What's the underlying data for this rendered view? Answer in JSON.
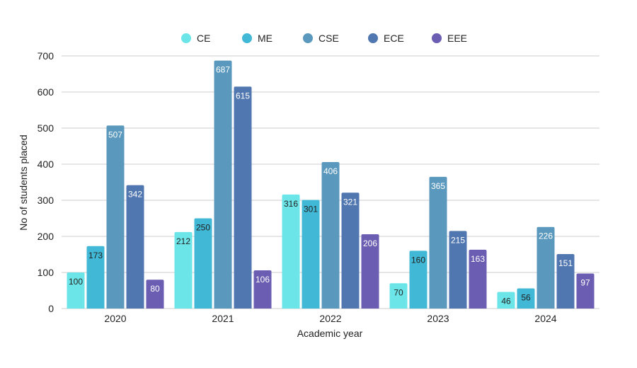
{
  "chart_data": {
    "type": "bar",
    "title": "",
    "xlabel": "Academic year",
    "ylabel": "No of students placed",
    "ylim": [
      0,
      700
    ],
    "yticks": [
      0,
      100,
      200,
      300,
      400,
      500,
      600,
      700
    ],
    "grid": true,
    "legend_position": "top-center",
    "categories": [
      "2020",
      "2021",
      "2022",
      "2023",
      "2024"
    ],
    "series": [
      {
        "name": "CE",
        "color": "#6ce5e8",
        "label_color": "#222222",
        "values": [
          100,
          212,
          316,
          70,
          46
        ]
      },
      {
        "name": "ME",
        "color": "#41b8d5",
        "label_color": "#222222",
        "values": [
          173,
          250,
          301,
          160,
          56
        ]
      },
      {
        "name": "CSE",
        "color": "#5a98bd",
        "label_color": "#ffffff",
        "values": [
          507,
          687,
          406,
          365,
          226
        ]
      },
      {
        "name": "ECE",
        "color": "#5177b0",
        "label_color": "#ffffff",
        "values": [
          342,
          615,
          321,
          215,
          151
        ]
      },
      {
        "name": "EEE",
        "color": "#6b5db2",
        "label_color": "#ffffff",
        "values": [
          80,
          106,
          206,
          163,
          97
        ]
      }
    ]
  }
}
